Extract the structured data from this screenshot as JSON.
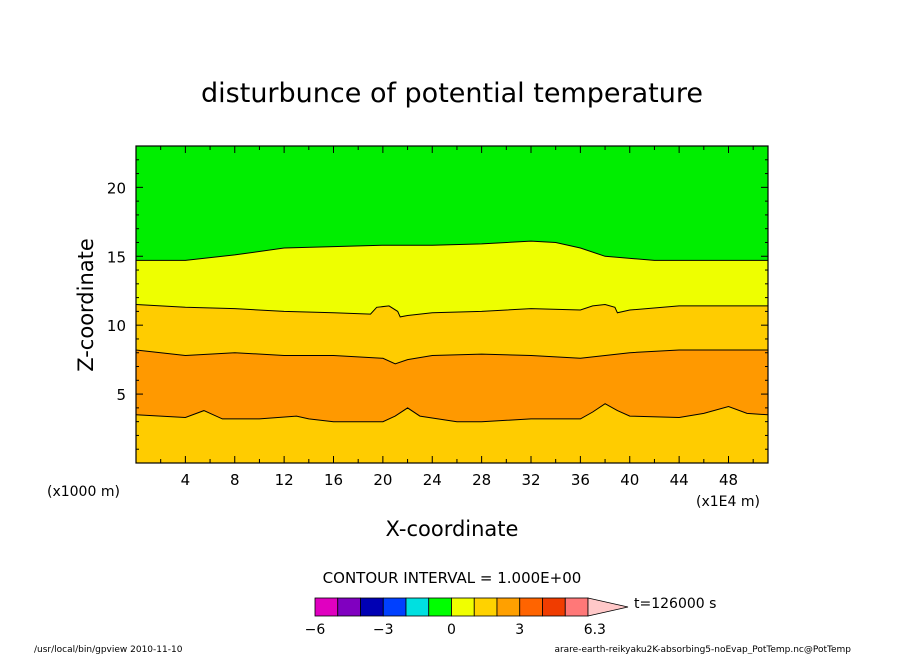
{
  "chart_data": {
    "type": "contour-filled",
    "title": "disturbunce of potential temperature",
    "xlabel": "X-coordinate",
    "ylabel": "Z-coordinate",
    "y_unit": "(x1000 m)",
    "x_unit": "(x1E4 m)",
    "xlim": [
      0,
      51.2
    ],
    "ylim": [
      0,
      23
    ],
    "x_ticks": [
      4,
      8,
      12,
      16,
      20,
      24,
      28,
      32,
      36,
      40,
      44,
      48
    ],
    "y_ticks": [
      5,
      10,
      15,
      20
    ],
    "contour_interval_text": "CONTOUR INTERVAL = 1.000E+00",
    "time_label": "t=126000 s",
    "colorbar": {
      "ticks": [
        {
          "value": -6,
          "label": "−6"
        },
        {
          "value": -3,
          "label": "−3"
        },
        {
          "value": 0,
          "label": "0"
        },
        {
          "value": 3,
          "label": "3"
        },
        {
          "value": 6.3,
          "label": "6.3"
        }
      ],
      "colors": [
        "#e000c0",
        "#8000c0",
        "#0000b4",
        "#0040ff",
        "#00e0e0",
        "#00ff00",
        "#f0ff00",
        "#ffd200",
        "#ffa000",
        "#ff6400",
        "#f03c00",
        "#ff7878",
        "#ffc8c8"
      ]
    },
    "bands": [
      {
        "level": "0 to 1",
        "color": "#00ee00"
      },
      {
        "level": "1 to 2",
        "color": "#eeff00"
      },
      {
        "level": "2 to 3",
        "color": "#ffcc00"
      },
      {
        "level": "3 to 4",
        "color": "#ff9900"
      },
      {
        "level": "2 to 3 (lower)",
        "color": "#ffcc00"
      }
    ],
    "contours": [
      {
        "level": 1,
        "points": [
          [
            0,
            14.7
          ],
          [
            4,
            14.7
          ],
          [
            8,
            15.1
          ],
          [
            12,
            15.6
          ],
          [
            16,
            15.7
          ],
          [
            20,
            15.8
          ],
          [
            24,
            15.8
          ],
          [
            28,
            15.9
          ],
          [
            32,
            16.1
          ],
          [
            34,
            16.0
          ],
          [
            36,
            15.6
          ],
          [
            38,
            15.0
          ],
          [
            42,
            14.7
          ],
          [
            46,
            14.7
          ],
          [
            51.2,
            14.7
          ]
        ]
      },
      {
        "level": 2,
        "points": [
          [
            0,
            11.5
          ],
          [
            4,
            11.3
          ],
          [
            8,
            11.2
          ],
          [
            12,
            11.0
          ],
          [
            16,
            10.9
          ],
          [
            19,
            10.8
          ],
          [
            19.5,
            11.3
          ],
          [
            20.5,
            11.4
          ],
          [
            21.2,
            11.0
          ],
          [
            21.4,
            10.6
          ],
          [
            22,
            10.7
          ],
          [
            24,
            10.9
          ],
          [
            28,
            11.0
          ],
          [
            32,
            11.2
          ],
          [
            36,
            11.1
          ],
          [
            37,
            11.4
          ],
          [
            38,
            11.5
          ],
          [
            38.8,
            11.3
          ],
          [
            39,
            10.9
          ],
          [
            40,
            11.1
          ],
          [
            44,
            11.4
          ],
          [
            51.2,
            11.4
          ]
        ]
      },
      {
        "level": 3,
        "points": [
          [
            0,
            8.2
          ],
          [
            4,
            7.8
          ],
          [
            8,
            8.0
          ],
          [
            12,
            7.8
          ],
          [
            16,
            7.8
          ],
          [
            20,
            7.6
          ],
          [
            21,
            7.2
          ],
          [
            22,
            7.5
          ],
          [
            24,
            7.8
          ],
          [
            28,
            7.9
          ],
          [
            32,
            7.8
          ],
          [
            36,
            7.6
          ],
          [
            38,
            7.8
          ],
          [
            40,
            8.0
          ],
          [
            44,
            8.2
          ],
          [
            51.2,
            8.2
          ]
        ]
      },
      {
        "level": 2,
        "points": [
          [
            0,
            3.5
          ],
          [
            4,
            3.3
          ],
          [
            5.5,
            3.8
          ],
          [
            7,
            3.2
          ],
          [
            10,
            3.2
          ],
          [
            13,
            3.4
          ],
          [
            14,
            3.2
          ],
          [
            16,
            3.0
          ],
          [
            20,
            3.0
          ],
          [
            21,
            3.4
          ],
          [
            22,
            4.0
          ],
          [
            23,
            3.4
          ],
          [
            26,
            3.0
          ],
          [
            28,
            3.0
          ],
          [
            32,
            3.2
          ],
          [
            36,
            3.2
          ],
          [
            37,
            3.7
          ],
          [
            38,
            4.3
          ],
          [
            39,
            3.8
          ],
          [
            40,
            3.4
          ],
          [
            44,
            3.3
          ],
          [
            46,
            3.6
          ],
          [
            48,
            4.1
          ],
          [
            49.5,
            3.6
          ],
          [
            51.2,
            3.5
          ]
        ]
      }
    ],
    "footer_left": "/usr/local/bin/gpview  2010-11-10",
    "footer_right": "arare-earth-reikyaku2K-absorbing5-noEvap_PotTemp.nc@PotTemp"
  }
}
